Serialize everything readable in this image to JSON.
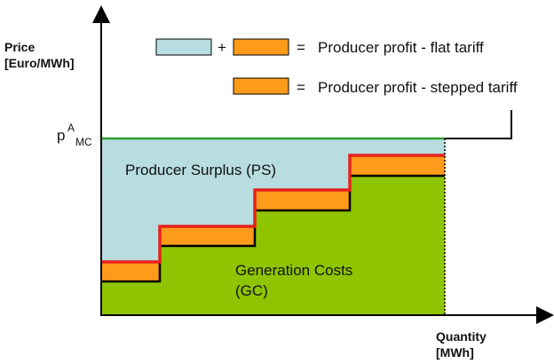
{
  "axes": {
    "y_title_line1": "Price",
    "y_title_line2": "[Euro/MWh]",
    "x_title_line1": "Quantity",
    "x_title_line2": "[MWh]"
  },
  "price_label": {
    "main": "p",
    "superscript": "A",
    "subscript": "MC"
  },
  "legend": {
    "plus": "+",
    "equals_1": "=",
    "entry_1": "Producer profit - flat tariff",
    "equals_2": "=",
    "entry_2": "Producer profit - stepped tariff"
  },
  "regions": {
    "producer_surplus": "Producer Surplus (PS)",
    "generation_costs_line1": "Generation Costs",
    "generation_costs_line2": "(GC)"
  },
  "colors": {
    "producer_surplus": "#b7dde0",
    "stepped_profit": "#ff9b1a",
    "generation_costs": "#8fc400",
    "flat_price_line": "#2ca02c",
    "stepped_tariff_line": "#e8201c",
    "axis": "#000000"
  }
}
